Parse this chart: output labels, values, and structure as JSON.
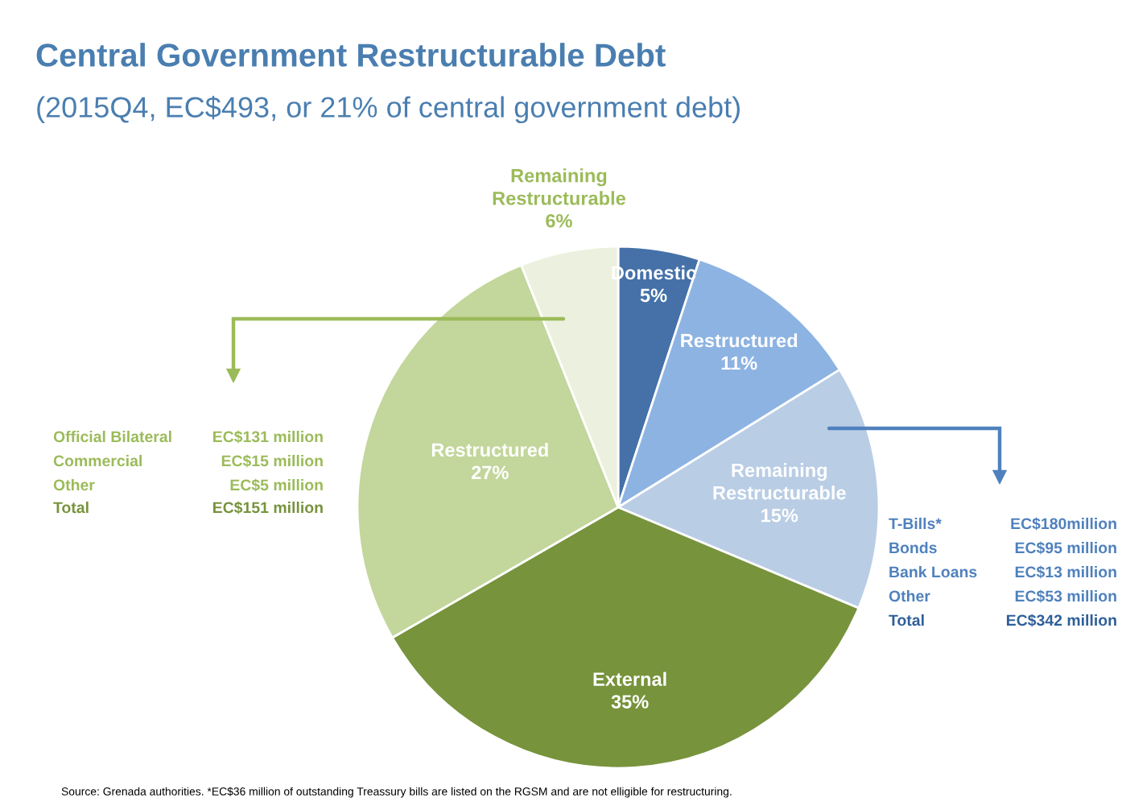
{
  "chart_data": {
    "type": "pie",
    "title": "Central Government Restructurable Debt",
    "subtitle": "(2015Q4, EC$493, or 21% of central government debt)",
    "categories": [
      "Domestic",
      "Restructured",
      "Remaining\nRestructurable",
      "External",
      "Restructured",
      "Remaining\nRestructurable"
    ],
    "values": [
      5,
      11,
      15,
      35,
      27,
      6
    ],
    "value_labels": [
      "5%",
      "11%",
      "15%",
      "35%",
      "27%",
      "6%"
    ],
    "colors": [
      "#4571a8",
      "#8db3e2",
      "#b9cde5",
      "#77933c",
      "#c3d69b",
      "#ebf1de"
    ],
    "legend": false,
    "annotations": [
      "Official Bilateral",
      "EC$131 million",
      "Commercial",
      "EC$15 million",
      "Other",
      "EC$5 million",
      "Total",
      "EC$151 million",
      "T-Bills*",
      "EC$180million",
      "Bonds",
      "EC$95 million",
      "Bank Loans",
      "EC$13 million",
      "Other",
      "EC$53 million",
      "Total",
      "EC$342 million",
      "Source: Grenada authorities. *EC$36 million of outstanding Treassury bills are listed on the RGSM and are not elligible for restructuring."
    ]
  }
}
